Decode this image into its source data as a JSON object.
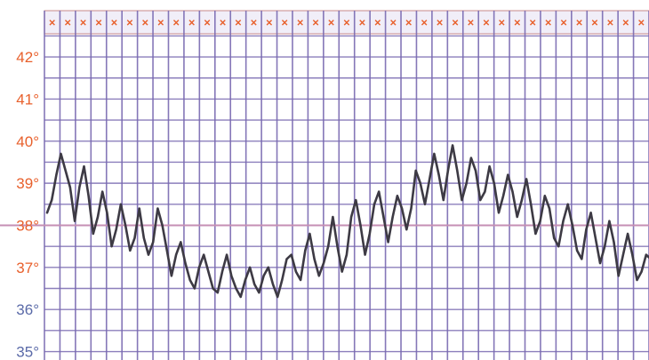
{
  "chart_data": {
    "type": "line",
    "title": "",
    "xlabel": "",
    "ylabel": "",
    "y_tick_labels": [
      "42°",
      "41°",
      "40°",
      "39°",
      "38°",
      "37°",
      "36°",
      "35°"
    ],
    "y_ticks": [
      42,
      41,
      40,
      39,
      38,
      37,
      36,
      35
    ],
    "ylim": [
      34.8,
      43.1
    ],
    "grid": true,
    "header_marks_count": 39,
    "header_mark_glyph": "✕",
    "reference_line": 38,
    "series": [
      {
        "values": [
          38.3,
          38.6,
          39.2,
          39.7,
          39.3,
          38.9,
          38.1,
          38.9,
          39.4,
          38.7,
          37.8,
          38.2,
          38.8,
          38.3,
          37.5,
          37.9,
          38.5,
          38.0,
          37.4,
          37.7,
          38.4,
          37.7,
          37.3,
          37.6,
          38.4,
          38.0,
          37.4,
          36.8,
          37.3,
          37.6,
          37.1,
          36.7,
          36.5,
          37.0,
          37.3,
          36.9,
          36.5,
          36.4,
          36.9,
          37.3,
          36.8,
          36.5,
          36.3,
          36.7,
          37.0,
          36.6,
          36.4,
          36.8,
          37.0,
          36.6,
          36.3,
          36.7,
          37.2,
          37.3,
          36.9,
          36.7,
          37.4,
          37.8,
          37.2,
          36.8,
          37.1,
          37.5,
          38.2,
          37.5,
          36.9,
          37.3,
          38.2,
          38.6,
          38.0,
          37.3,
          37.8,
          38.5,
          38.8,
          38.2,
          37.6,
          38.2,
          38.7,
          38.4,
          37.9,
          38.4,
          39.3,
          39.0,
          38.5,
          39.1,
          39.7,
          39.2,
          38.6,
          39.3,
          39.9,
          39.3,
          38.6,
          39.0,
          39.6,
          39.3,
          38.6,
          38.8,
          39.4,
          39.0,
          38.3,
          38.7,
          39.2,
          38.8,
          38.2,
          38.6,
          39.1,
          38.5,
          37.8,
          38.1,
          38.7,
          38.4,
          37.7,
          37.5,
          38.1,
          38.5,
          38.0,
          37.4,
          37.2,
          37.9,
          38.3,
          37.7,
          37.1,
          37.5,
          38.1,
          37.6,
          36.8,
          37.3,
          37.8,
          37.3,
          36.7,
          36.9,
          37.3,
          37.2
        ]
      }
    ]
  },
  "colors": {
    "background": "#ffffff",
    "grid_line": "#7868b0",
    "header_fill": "#f1eef8",
    "header_border": "#c88a8a",
    "data_line": "#3d3a44",
    "reference_line": "#c58fb4",
    "warm_label": "#e8602c",
    "cool_label": "#5a6aa8"
  }
}
